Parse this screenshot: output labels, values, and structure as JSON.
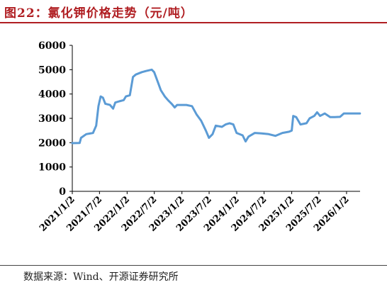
{
  "title": "图22：氯化钾价格走势（元/吨）",
  "source": "数据来源：Wind、开源证券研究所",
  "chart_data": {
    "type": "line",
    "title": "氯化钾价格走势（元/吨）",
    "xlabel": "",
    "ylabel": "",
    "ylim": [
      0,
      6000
    ],
    "yticks": [
      0,
      1000,
      2000,
      3000,
      4000,
      5000,
      6000
    ],
    "xlim": [
      "2021-01-02",
      "2026-04-02"
    ],
    "xtick_labels": [
      "2021/1/2",
      "2021/7/2",
      "2022/1/2",
      "2022/7/2",
      "2023/1/2",
      "2023/7/2",
      "2024/1/2",
      "2024/7/2",
      "2025/1/2",
      "2025/7/2",
      "2026/1/2"
    ],
    "xticks": [
      "2021-01-02",
      "2021-07-02",
      "2022-01-02",
      "2022-07-02",
      "2023-01-02",
      "2023-07-02",
      "2024-01-02",
      "2024-07-02",
      "2025-01-02",
      "2025-07-02",
      "2026-01-02"
    ],
    "grid": false,
    "legend": "none",
    "line_color": "#5b9bd5",
    "series": [
      {
        "points": [
          [
            "2021-01-02",
            1980
          ],
          [
            "2021-02-20",
            1990
          ],
          [
            "2021-03-01",
            2200
          ],
          [
            "2021-04-05",
            2350
          ],
          [
            "2021-05-20",
            2400
          ],
          [
            "2021-06-10",
            2700
          ],
          [
            "2021-06-25",
            3500
          ],
          [
            "2021-07-10",
            3900
          ],
          [
            "2021-07-25",
            3850
          ],
          [
            "2021-08-10",
            3600
          ],
          [
            "2021-09-10",
            3550
          ],
          [
            "2021-10-01",
            3400
          ],
          [
            "2021-10-15",
            3650
          ],
          [
            "2021-11-10",
            3700
          ],
          [
            "2021-12-10",
            3750
          ],
          [
            "2021-12-25",
            3900
          ],
          [
            "2022-01-20",
            3950
          ],
          [
            "2022-02-10",
            4700
          ],
          [
            "2022-03-01",
            4800
          ],
          [
            "2022-04-10",
            4900
          ],
          [
            "2022-05-10",
            4950
          ],
          [
            "2022-06-15",
            5000
          ],
          [
            "2022-07-01",
            4900
          ],
          [
            "2022-07-25",
            4500
          ],
          [
            "2022-08-15",
            4150
          ],
          [
            "2022-09-10",
            3900
          ],
          [
            "2022-10-01",
            3750
          ],
          [
            "2022-10-25",
            3600
          ],
          [
            "2022-11-15",
            3450
          ],
          [
            "2022-12-01",
            3550
          ],
          [
            "2023-02-01",
            3550
          ],
          [
            "2023-03-10",
            3500
          ],
          [
            "2023-04-10",
            3150
          ],
          [
            "2023-05-10",
            2900
          ],
          [
            "2023-06-10",
            2500
          ],
          [
            "2023-07-01",
            2200
          ],
          [
            "2023-07-25",
            2350
          ],
          [
            "2023-08-15",
            2700
          ],
          [
            "2023-09-25",
            2650
          ],
          [
            "2023-10-20",
            2750
          ],
          [
            "2023-11-15",
            2800
          ],
          [
            "2023-12-10",
            2750
          ],
          [
            "2024-01-01",
            2400
          ],
          [
            "2024-02-10",
            2300
          ],
          [
            "2024-03-01",
            2050
          ],
          [
            "2024-03-20",
            2250
          ],
          [
            "2024-05-01",
            2400
          ],
          [
            "2024-06-15",
            2380
          ],
          [
            "2024-08-01",
            2350
          ],
          [
            "2024-09-15",
            2280
          ],
          [
            "2024-11-01",
            2400
          ],
          [
            "2024-12-15",
            2450
          ],
          [
            "2025-01-02",
            2500
          ],
          [
            "2025-01-12",
            3100
          ],
          [
            "2025-02-01",
            3050
          ],
          [
            "2025-03-01",
            2750
          ],
          [
            "2025-04-10",
            2800
          ],
          [
            "2025-05-01",
            3000
          ],
          [
            "2025-06-01",
            3100
          ],
          [
            "2025-06-20",
            3250
          ],
          [
            "2025-07-10",
            3100
          ],
          [
            "2025-08-10",
            3200
          ],
          [
            "2025-09-15",
            3050
          ],
          [
            "2025-10-15",
            3050
          ],
          [
            "2025-11-20",
            3060
          ],
          [
            "2025-12-15",
            3200
          ],
          [
            "2026-02-01",
            3200
          ],
          [
            "2026-04-01",
            3200
          ]
        ]
      }
    ]
  }
}
